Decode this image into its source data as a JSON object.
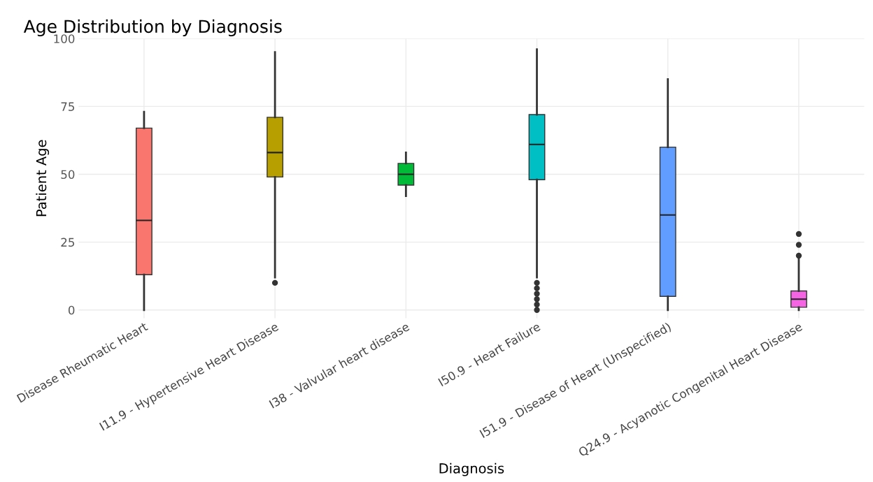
{
  "chart_data": {
    "type": "box",
    "title": "Age Distribution by Diagnosis",
    "xlabel": "Diagnosis",
    "ylabel": "Patient Age",
    "categories": [
      "Disease Rheumatic Heart",
      "I11.9 - Hypertensive Heart Disease",
      "I38 - Valvular heart disease",
      "I50.9 - Heart Failure",
      "I51.9 - Disease of Heart (Unspecified)",
      "Q24.9 - Acyanotic Congenital Heart Disease"
    ],
    "colors": [
      "#f8766d",
      "#b79f00",
      "#00ba38",
      "#00bfc4",
      "#619cff",
      "#f564e3"
    ],
    "boxes": [
      {
        "low": 0,
        "q1": 13,
        "median": 33,
        "q3": 67,
        "high": 73
      },
      {
        "low": 12,
        "q1": 49,
        "median": 58,
        "q3": 71,
        "high": 95,
        "outliers": [
          10
        ]
      },
      {
        "low": 42,
        "q1": 46,
        "median": 50,
        "q3": 54,
        "high": 58
      },
      {
        "low": 12,
        "q1": 48,
        "median": 61,
        "q3": 72,
        "high": 96,
        "outliers": [
          0,
          2,
          4,
          6,
          8,
          10
        ]
      },
      {
        "low": 0,
        "q1": 5,
        "median": 35,
        "q3": 60,
        "high": 85
      },
      {
        "low": 0,
        "q1": 1,
        "median": 4,
        "q3": 7,
        "high": 19,
        "outliers": [
          20,
          24,
          28
        ]
      }
    ],
    "ylim": [
      -3,
      100
    ],
    "yticks": [
      0,
      25,
      50,
      75,
      100
    ],
    "grid": true
  }
}
